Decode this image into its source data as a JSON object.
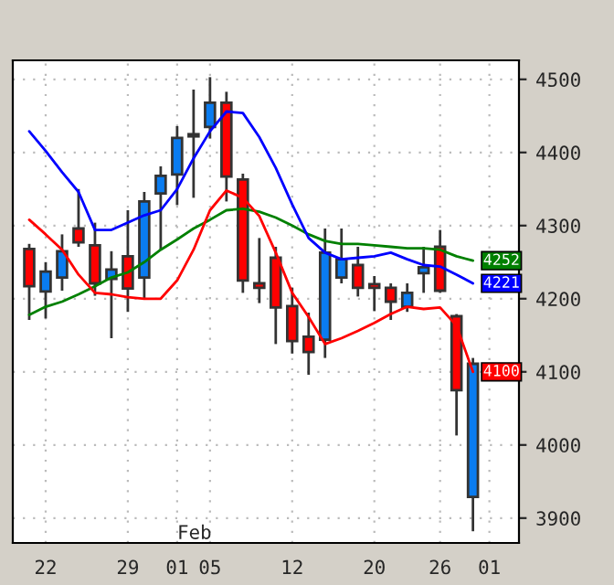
{
  "chart_data": {
    "type": "candlestick",
    "categories": [
      null,
      "22",
      null,
      null,
      null,
      null,
      "29",
      null,
      null,
      "01",
      null,
      "05",
      null,
      null,
      null,
      null,
      "12",
      null,
      null,
      null,
      null,
      "20",
      null,
      null,
      null,
      "26",
      null,
      null,
      "01"
    ],
    "ohlc": [
      [
        4268,
        4275,
        4171,
        4217
      ],
      [
        4210,
        4250,
        4173,
        4237
      ],
      [
        4229,
        4288,
        4211,
        4265
      ],
      [
        4296,
        4350,
        4271,
        4277
      ],
      [
        4273,
        4304,
        4204,
        4221
      ],
      [
        4227,
        4265,
        4146,
        4240
      ],
      [
        4258,
        4321,
        4182,
        4214
      ],
      [
        4229,
        4346,
        4200,
        4333
      ],
      [
        4344,
        4381,
        4267,
        4368
      ],
      [
        4370,
        4436,
        4328,
        4420
      ],
      [
        4422,
        4486,
        4338,
        4425
      ],
      [
        4435,
        4503,
        4419,
        4468
      ],
      [
        4468,
        4483,
        4333,
        4367
      ],
      [
        4363,
        4371,
        4208,
        4225
      ],
      [
        4221,
        4283,
        4194,
        4215
      ],
      [
        4256,
        4271,
        4138,
        4188
      ],
      [
        4190,
        4215,
        4125,
        4142
      ],
      [
        4148,
        4181,
        4096,
        4127
      ],
      [
        4144,
        4296,
        4119,
        4263
      ],
      [
        4229,
        4296,
        4221,
        4254
      ],
      [
        4246,
        4271,
        4203,
        4215
      ],
      [
        4220,
        4231,
        4183,
        4215
      ],
      [
        4215,
        4221,
        4171,
        4196
      ],
      [
        4189,
        4221,
        4182,
        4208
      ],
      [
        4235,
        4271,
        4208,
        4243
      ],
      [
        4271,
        4294,
        4208,
        4211
      ],
      [
        4176,
        4179,
        4013,
        4075
      ],
      [
        3929,
        4119,
        3882,
        4111
      ],
      null
    ],
    "colors": [
      "#ff0000",
      "#0a7cf0",
      "#0a7cf0",
      "#ff0000",
      "#ff0000",
      "#0a7cf0",
      "#ff0000",
      "#0a7cf0",
      "#0a7cf0",
      "#0a7cf0",
      "#0a7cf0",
      "#0a7cf0",
      "#ff0000",
      "#ff0000",
      "#ff0000",
      "#ff0000",
      "#ff0000",
      "#ff0000",
      "#0a7cf0",
      "#0a7cf0",
      "#ff0000",
      "#ff0000",
      "#ff0000",
      "#0a7cf0",
      "#0a7cf0",
      "#ff0000",
      "#ff0000",
      "#0a7cf0",
      null
    ],
    "series": [
      {
        "type": "line",
        "color": "#008000",
        "values": [
          4178,
          4189,
          4196,
          4206,
          4217,
          4229,
          4236,
          4250,
          4267,
          4281,
          4296,
          4308,
          4321,
          4323,
          4319,
          4311,
          4300,
          4288,
          4279,
          4275,
          4275,
          4273,
          4271,
          4269,
          4269,
          4267,
          4258,
          4252,
          null
        ],
        "value_labels": [
          null,
          null,
          null,
          null,
          null,
          null,
          null,
          null,
          null,
          null,
          null,
          null,
          null,
          null,
          null,
          null,
          null,
          null,
          null,
          null,
          null,
          null,
          null,
          null,
          null,
          null,
          null,
          "4252",
          null
        ]
      },
      {
        "type": "line",
        "color": "#0000ff",
        "values": [
          4429,
          4402,
          4373,
          4346,
          4294,
          4294,
          4304,
          4314,
          4321,
          4350,
          4392,
          4429,
          4456,
          4454,
          4421,
          4379,
          4329,
          4283,
          4263,
          4254,
          4256,
          4258,
          4263,
          4254,
          4246,
          4244,
          4233,
          4221,
          null
        ],
        "value_labels": [
          null,
          null,
          null,
          null,
          null,
          null,
          null,
          null,
          null,
          null,
          null,
          null,
          null,
          null,
          null,
          null,
          null,
          null,
          null,
          null,
          null,
          null,
          null,
          null,
          null,
          null,
          null,
          "4221",
          null
        ]
      },
      {
        "type": "line",
        "color": "#ff0000",
        "values": [
          4308,
          4288,
          4267,
          4233,
          4208,
          4206,
          4202,
          4200,
          4200,
          4225,
          4267,
          4321,
          4348,
          4338,
          4313,
          4263,
          4208,
          4175,
          4138,
          4146,
          4156,
          4167,
          4179,
          4189,
          4186,
          4188,
          4163,
          4100,
          null
        ],
        "value_labels": [
          null,
          null,
          null,
          null,
          null,
          null,
          null,
          null,
          null,
          null,
          null,
          null,
          null,
          null,
          null,
          null,
          null,
          null,
          null,
          null,
          null,
          null,
          null,
          null,
          null,
          null,
          null,
          "4100",
          null
        ]
      }
    ],
    "ylim": [
      3866,
      4526
    ],
    "yticks": [
      3900,
      4000,
      4100,
      4200,
      4300,
      4400,
      4500
    ],
    "grid": true,
    "annotations": [
      "Feb"
    ]
  }
}
